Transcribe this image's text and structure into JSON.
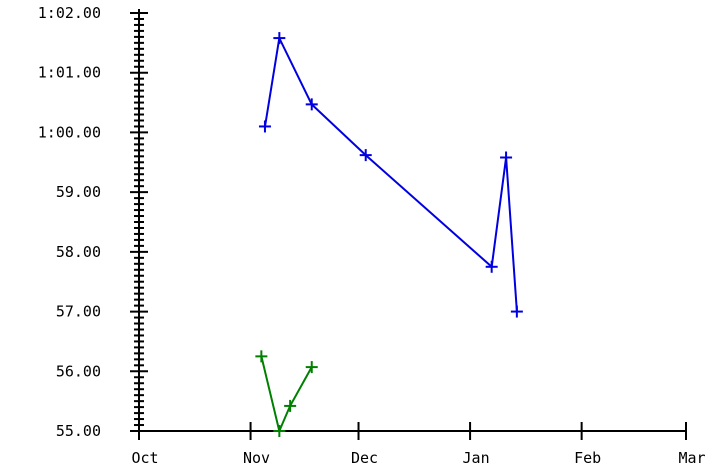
{
  "chart_data": {
    "type": "line",
    "title": "",
    "xlabel": "",
    "ylabel": "",
    "x_axis": {
      "type": "date",
      "range": [
        "2019-10-01",
        "2020-03-01"
      ],
      "tick_values": [
        "2019-10-01",
        "2019-11-01",
        "2019-12-01",
        "2020-01-01",
        "2020-02-01",
        "2020-03-01"
      ],
      "tick_labels": [
        "Oct",
        "Nov",
        "Dec",
        "Jan",
        "Feb",
        "Mar"
      ]
    },
    "y_axis": {
      "range": [
        55,
        62
      ],
      "tick_values": [
        55,
        56,
        57,
        58,
        59,
        60,
        61,
        62
      ],
      "tick_labels": [
        "55.00",
        "56.00",
        "57.00",
        "58.00",
        "59.00",
        "1:00.00",
        "1:01.00",
        "1:02.00"
      ],
      "minor_ticks_per_major": 10
    },
    "grid": false,
    "legend": "none",
    "series": [
      {
        "color": "#0000e0",
        "marker": "plus",
        "points": [
          {
            "x": "2019-11-05",
            "y": 60.1
          },
          {
            "x": "2019-11-09",
            "y": 61.58
          },
          {
            "x": "2019-11-18",
            "y": 60.47
          },
          {
            "x": "2019-12-03",
            "y": 59.62
          },
          {
            "x": "2020-01-07",
            "y": 57.75
          },
          {
            "x": "2020-01-11",
            "y": 59.58
          },
          {
            "x": "2020-01-14",
            "y": 57.0
          }
        ]
      },
      {
        "color": "#008000",
        "marker": "plus",
        "points": [
          {
            "x": "2019-11-04",
            "y": 56.25
          },
          {
            "x": "2019-11-09",
            "y": 55.0
          },
          {
            "x": "2019-11-12",
            "y": 55.42
          },
          {
            "x": "2019-11-18",
            "y": 56.07
          }
        ]
      }
    ]
  }
}
